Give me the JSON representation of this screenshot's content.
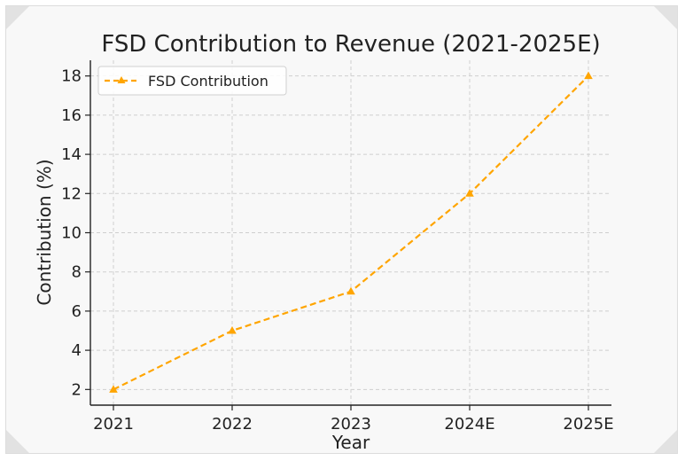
{
  "chart_data": {
    "type": "line",
    "title": "FSD Contribution to Revenue (2021-2025E)",
    "xlabel": "Year",
    "ylabel": "Contribution (%)",
    "categories": [
      "2021",
      "2022",
      "2023",
      "2024E",
      "2025E"
    ],
    "series": [
      {
        "name": "FSD Contribution",
        "values": [
          2,
          5,
          7,
          12,
          18
        ],
        "color": "#FFA500",
        "line_style": "dashed",
        "marker": "triangle"
      }
    ],
    "yticks": [
      2,
      4,
      6,
      8,
      10,
      12,
      14,
      16,
      18
    ],
    "ylim": [
      1.2,
      18.8
    ],
    "grid": true,
    "legend_position": "top-left"
  }
}
